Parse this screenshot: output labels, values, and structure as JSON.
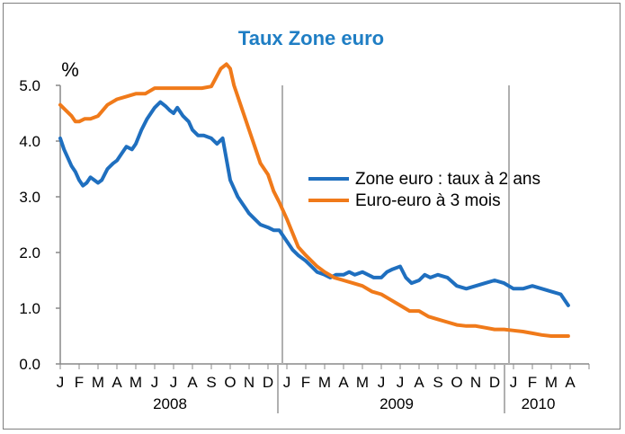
{
  "chart_data": {
    "type": "line",
    "title": "Taux Zone euro",
    "ylabel": "%",
    "xlabel": "",
    "ylim": [
      0,
      5.0
    ],
    "yticks": [
      "0.0",
      "1.0",
      "2.0",
      "3.0",
      "4.0",
      "5.0"
    ],
    "grid": false,
    "legend_position": "center-right",
    "month_labels": [
      "J",
      "F",
      "M",
      "A",
      "M",
      "J",
      "J",
      "A",
      "S",
      "O",
      "N",
      "D",
      "J",
      "F",
      "M",
      "A",
      "M",
      "J",
      "J",
      "A",
      "S",
      "O",
      "N",
      "D",
      "J",
      "F",
      "M",
      "A"
    ],
    "year_labels": [
      {
        "label": "2008",
        "start_month": 0,
        "end_month": 12
      },
      {
        "label": "2009",
        "start_month": 12,
        "end_month": 24
      },
      {
        "label": "2010",
        "start_month": 24,
        "end_month": 27
      }
    ],
    "x_unit": "months since January 2008",
    "series": [
      {
        "name": "Zone euro : taux à 2 ans",
        "color": "#1f6fbf",
        "x": [
          0,
          0.2,
          0.4,
          0.6,
          0.8,
          1.0,
          1.2,
          1.4,
          1.6,
          1.8,
          2.0,
          2.2,
          2.5,
          2.8,
          3.0,
          3.2,
          3.5,
          3.8,
          4.0,
          4.3,
          4.6,
          5.0,
          5.3,
          5.6,
          5.8,
          6.0,
          6.2,
          6.5,
          6.8,
          7.0,
          7.3,
          7.6,
          8.0,
          8.3,
          8.6,
          9.0,
          9.2,
          9.4,
          9.6,
          9.8,
          10.0,
          10.3,
          10.6,
          11.0,
          11.3,
          11.6,
          12.0,
          12.3,
          12.6,
          13.0,
          13.3,
          13.6,
          14.0,
          14.3,
          14.6,
          15.0,
          15.3,
          15.6,
          16.0,
          16.3,
          16.6,
          17.0,
          17.3,
          17.6,
          18.0,
          18.3,
          18.6,
          19.0,
          19.3,
          19.6,
          20.0,
          20.5,
          21.0,
          21.5,
          22.0,
          22.5,
          23.0,
          23.5,
          24.0,
          24.5,
          25.0,
          25.5,
          26.0,
          26.5,
          26.9
        ],
        "values": [
          4.05,
          3.85,
          3.7,
          3.55,
          3.45,
          3.3,
          3.2,
          3.25,
          3.35,
          3.3,
          3.25,
          3.3,
          3.5,
          3.6,
          3.65,
          3.75,
          3.9,
          3.85,
          3.95,
          4.2,
          4.4,
          4.6,
          4.7,
          4.62,
          4.55,
          4.5,
          4.6,
          4.45,
          4.35,
          4.2,
          4.1,
          4.1,
          4.05,
          3.95,
          4.05,
          3.3,
          3.15,
          3.0,
          2.9,
          2.8,
          2.7,
          2.6,
          2.5,
          2.45,
          2.4,
          2.4,
          2.2,
          2.05,
          1.95,
          1.85,
          1.75,
          1.65,
          1.6,
          1.55,
          1.6,
          1.6,
          1.65,
          1.6,
          1.65,
          1.6,
          1.55,
          1.55,
          1.65,
          1.7,
          1.75,
          1.55,
          1.45,
          1.5,
          1.6,
          1.55,
          1.6,
          1.55,
          1.4,
          1.35,
          1.4,
          1.45,
          1.5,
          1.45,
          1.35,
          1.35,
          1.4,
          1.35,
          1.3,
          1.25,
          1.05
        ]
      },
      {
        "name": "Euro-euro à 3 mois",
        "color": "#f07a1a",
        "x": [
          0,
          0.3,
          0.6,
          0.8,
          1.0,
          1.3,
          1.6,
          2.0,
          2.5,
          3.0,
          3.5,
          4.0,
          4.5,
          5.0,
          5.5,
          6.0,
          6.5,
          7.0,
          7.5,
          8.0,
          8.5,
          8.8,
          9.0,
          9.2,
          9.4,
          9.6,
          9.8,
          10.0,
          10.3,
          10.6,
          11.0,
          11.3,
          11.6,
          12.0,
          12.3,
          12.6,
          13.0,
          13.3,
          13.6,
          14.0,
          14.5,
          15.0,
          15.5,
          16.0,
          16.5,
          17.0,
          17.5,
          18.0,
          18.5,
          19.0,
          19.5,
          20.0,
          20.5,
          21.0,
          21.5,
          22.0,
          22.5,
          23.0,
          23.5,
          24.0,
          24.5,
          25.0,
          25.5,
          26.0,
          26.5,
          26.9
        ],
        "values": [
          4.65,
          4.55,
          4.45,
          4.35,
          4.35,
          4.4,
          4.4,
          4.45,
          4.65,
          4.75,
          4.8,
          4.85,
          4.85,
          4.95,
          4.95,
          4.95,
          4.95,
          4.95,
          4.95,
          4.98,
          5.3,
          5.38,
          5.3,
          5.0,
          4.8,
          4.6,
          4.4,
          4.2,
          3.9,
          3.6,
          3.4,
          3.1,
          2.9,
          2.6,
          2.35,
          2.1,
          1.95,
          1.85,
          1.75,
          1.65,
          1.55,
          1.5,
          1.45,
          1.4,
          1.3,
          1.25,
          1.15,
          1.05,
          0.95,
          0.95,
          0.85,
          0.8,
          0.75,
          0.7,
          0.68,
          0.68,
          0.65,
          0.62,
          0.62,
          0.6,
          0.58,
          0.55,
          0.52,
          0.5,
          0.5,
          0.5
        ]
      }
    ]
  }
}
